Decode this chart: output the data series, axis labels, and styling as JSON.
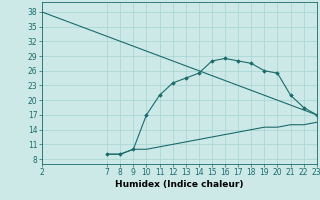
{
  "bg_color": "#cce9e8",
  "line_color": "#1a6b6b",
  "grid_color": "#aad8d6",
  "xlabel": "Humidex (Indice chaleur)",
  "xlabel_fontsize": 6.5,
  "tick_fontsize": 5.5,
  "xlim": [
    2,
    23
  ],
  "ylim": [
    7,
    40
  ],
  "yticks": [
    8,
    11,
    14,
    17,
    20,
    23,
    26,
    29,
    32,
    35,
    38
  ],
  "xticks": [
    2,
    7,
    8,
    9,
    10,
    11,
    12,
    13,
    14,
    15,
    16,
    17,
    18,
    19,
    20,
    21,
    22,
    23
  ],
  "line1_x": [
    2,
    23
  ],
  "line1_y": [
    38,
    17
  ],
  "line2_x": [
    7,
    8,
    9,
    10,
    11,
    12,
    13,
    14,
    15,
    16,
    17,
    18,
    19,
    20,
    21,
    22,
    23
  ],
  "line2_y": [
    9,
    9,
    10,
    17,
    21,
    23.5,
    24.5,
    25.5,
    28,
    28.5,
    28,
    27.5,
    26,
    25.5,
    21,
    18.5,
    17
  ],
  "line3_x": [
    7,
    8,
    9,
    10,
    11,
    12,
    13,
    14,
    15,
    16,
    17,
    18,
    19,
    20,
    21,
    22,
    23
  ],
  "line3_y": [
    9,
    9,
    10,
    10,
    10.5,
    11,
    11.5,
    12,
    12.5,
    13,
    13.5,
    14,
    14.5,
    14.5,
    15,
    15,
    15.5
  ]
}
